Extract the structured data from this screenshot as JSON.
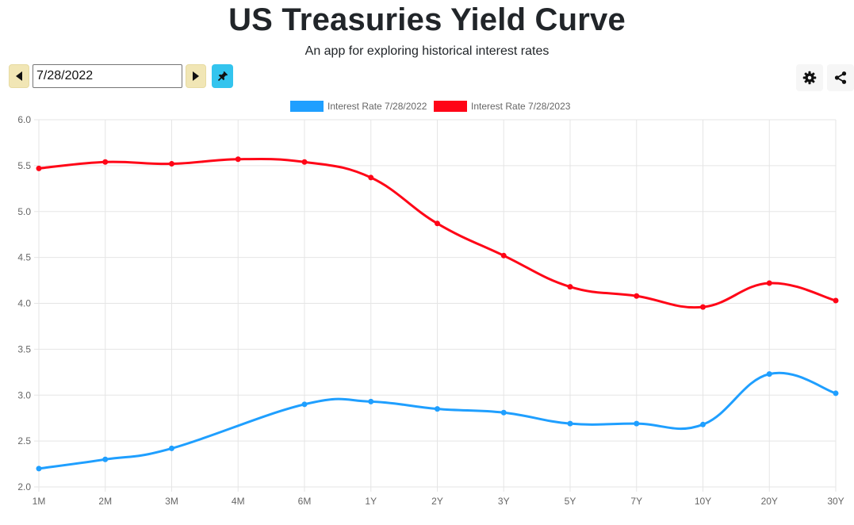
{
  "header": {
    "title": "US Treasuries Yield Curve",
    "subtitle": "An app for exploring historical interest rates"
  },
  "controls": {
    "date_value": "7/28/2022",
    "prev_icon": "caret-left-icon",
    "next_icon": "caret-right-icon",
    "pin_icon": "pin-icon",
    "settings_icon": "gear-icon",
    "share_icon": "share-icon",
    "colors": {
      "nav_bg": "#f1e6b5",
      "pin_bg": "#33c4ee"
    }
  },
  "chart_data": {
    "type": "line",
    "categories": [
      "1M",
      "2M",
      "3M",
      "4M",
      "6M",
      "1Y",
      "2Y",
      "3Y",
      "5Y",
      "7Y",
      "10Y",
      "20Y",
      "30Y"
    ],
    "ylim": [
      2.0,
      6.0
    ],
    "yticks": [
      "6.0",
      "5.5",
      "5.0",
      "4.5",
      "4.0",
      "3.5",
      "3.0",
      "2.5",
      "2.0"
    ],
    "legend_position": "top-center",
    "grid": true,
    "series": [
      {
        "name": "Interest Rate 7/28/2022",
        "color": "#1f9fff",
        "values": [
          2.2,
          2.3,
          2.42,
          null,
          2.9,
          2.93,
          2.85,
          2.81,
          2.69,
          2.69,
          2.68,
          3.23,
          3.02
        ]
      },
      {
        "name": "Interest Rate 7/28/2023",
        "color": "#ff0517",
        "values": [
          5.47,
          5.54,
          5.52,
          5.57,
          5.54,
          5.37,
          4.87,
          4.52,
          4.18,
          4.08,
          3.96,
          4.22,
          4.03
        ]
      }
    ]
  }
}
